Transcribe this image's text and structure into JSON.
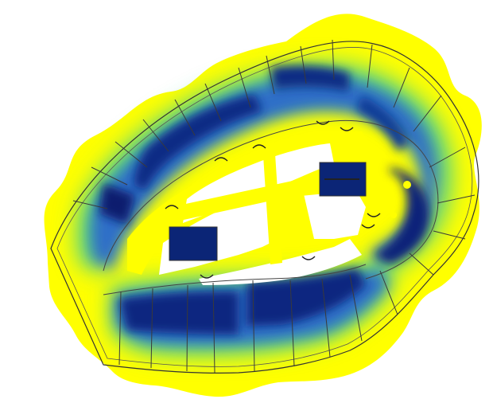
{
  "figure": {
    "kind": "floor-plan heatmap",
    "colors": {
      "background": "#ffffff",
      "outer_field": "#ffff00",
      "ring_outer": "#ffff00",
      "ring_mid_green": "#39c98c",
      "ring_light_blue": "#62c3e6",
      "ring_blue": "#2e6bc4",
      "ring_dark": "#0f2f8a",
      "ring_darkest": "#08195a",
      "wall_lines": "#3a3a3a"
    },
    "visible_text": []
  }
}
